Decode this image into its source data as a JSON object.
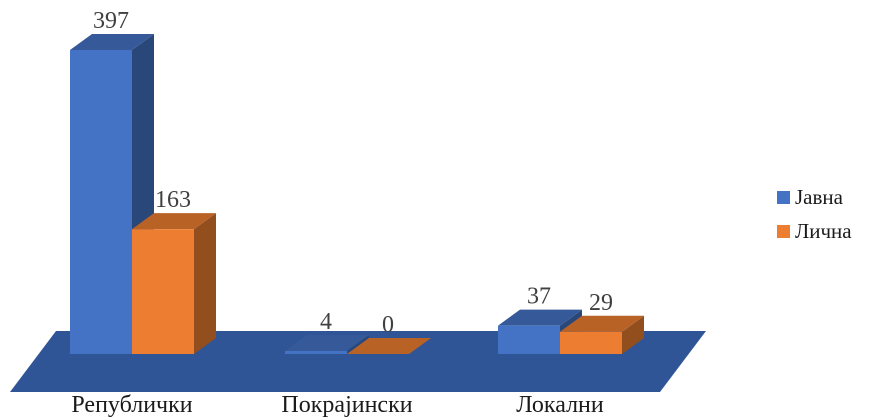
{
  "chart_data": {
    "type": "bar",
    "title": "",
    "xlabel": "",
    "ylabel": "",
    "categories": [
      "Републички",
      "Покрајински",
      "Локални"
    ],
    "series": [
      {
        "name": "Јавна",
        "values": [
          397,
          4,
          37
        ],
        "color": "#4472c4"
      },
      {
        "name": "Лична",
        "values": [
          163,
          0,
          29
        ],
        "color": "#ed7d31"
      }
    ],
    "ylim": [
      0,
      397
    ],
    "grid": false,
    "legend_position": "right",
    "three_d": true,
    "floor_color": "#2f5597"
  }
}
